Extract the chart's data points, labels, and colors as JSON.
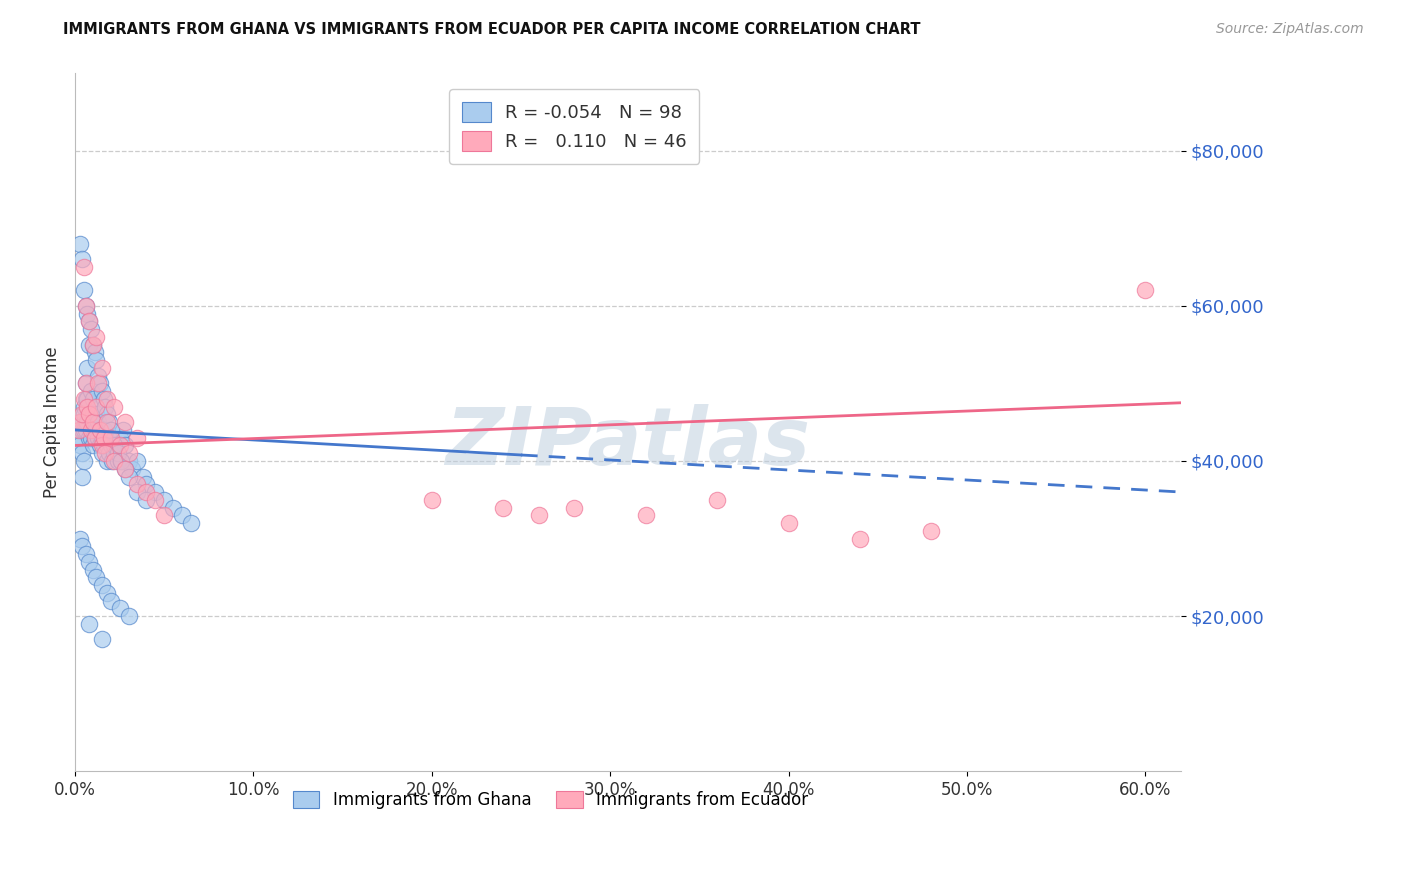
{
  "title": "IMMIGRANTS FROM GHANA VS IMMIGRANTS FROM ECUADOR PER CAPITA INCOME CORRELATION CHART",
  "source": "Source: ZipAtlas.com",
  "ylabel": "Per Capita Income",
  "xlim": [
    0.0,
    0.62
  ],
  "ylim": [
    0,
    90000
  ],
  "yticks": [
    20000,
    40000,
    60000,
    80000
  ],
  "ytick_labels": [
    "$20,000",
    "$40,000",
    "$60,000",
    "$80,000"
  ],
  "xticks": [
    0.0,
    0.1,
    0.2,
    0.3,
    0.4,
    0.5,
    0.6
  ],
  "xtick_labels": [
    "0.0%",
    "10.0%",
    "20.0%",
    "30.0%",
    "40.0%",
    "50.0%",
    "60.0%"
  ],
  "legend_R_ghana": "-0.054",
  "legend_N_ghana": "98",
  "legend_R_ecuador": "0.110",
  "legend_N_ecuador": "46",
  "ghana_face_color": "#AACCEE",
  "ghana_edge_color": "#5588CC",
  "ecuador_face_color": "#FFAABB",
  "ecuador_edge_color": "#EE7799",
  "trend_ghana_color": "#4477CC",
  "trend_ecuador_color": "#EE6688",
  "watermark": "ZIPatlas",
  "watermark_color": "#BBCCDD",
  "ghana_x": [
    0.002,
    0.003,
    0.003,
    0.004,
    0.004,
    0.004,
    0.005,
    0.005,
    0.005,
    0.005,
    0.006,
    0.006,
    0.006,
    0.007,
    0.007,
    0.007,
    0.008,
    0.008,
    0.009,
    0.009,
    0.009,
    0.01,
    0.01,
    0.01,
    0.01,
    0.011,
    0.011,
    0.012,
    0.012,
    0.013,
    0.013,
    0.014,
    0.014,
    0.015,
    0.015,
    0.016,
    0.016,
    0.017,
    0.018,
    0.018,
    0.019,
    0.02,
    0.021,
    0.022,
    0.023,
    0.024,
    0.025,
    0.026,
    0.027,
    0.028,
    0.03,
    0.032,
    0.035,
    0.038,
    0.04,
    0.045,
    0.05,
    0.055,
    0.06,
    0.065,
    0.003,
    0.004,
    0.005,
    0.006,
    0.007,
    0.008,
    0.009,
    0.01,
    0.011,
    0.012,
    0.013,
    0.014,
    0.015,
    0.016,
    0.017,
    0.018,
    0.019,
    0.02,
    0.022,
    0.024,
    0.026,
    0.028,
    0.03,
    0.035,
    0.04,
    0.003,
    0.004,
    0.006,
    0.008,
    0.01,
    0.012,
    0.015,
    0.018,
    0.02,
    0.025,
    0.03,
    0.008,
    0.015
  ],
  "ghana_y": [
    43000,
    45000,
    42000,
    44000,
    41000,
    38000,
    47000,
    46000,
    44000,
    40000,
    50000,
    48000,
    44000,
    52000,
    48000,
    45000,
    55000,
    43000,
    49000,
    46000,
    43000,
    48000,
    46000,
    44000,
    42000,
    45000,
    43000,
    46000,
    44000,
    45000,
    43000,
    44000,
    42000,
    43000,
    41000,
    44000,
    42000,
    43000,
    42000,
    40000,
    41000,
    42000,
    40000,
    41000,
    42000,
    40000,
    43000,
    40000,
    44000,
    42000,
    40000,
    39000,
    40000,
    38000,
    37000,
    36000,
    35000,
    34000,
    33000,
    32000,
    68000,
    66000,
    62000,
    60000,
    59000,
    58000,
    57000,
    55000,
    54000,
    53000,
    51000,
    50000,
    49000,
    48000,
    47000,
    46000,
    45000,
    44000,
    42000,
    41000,
    40000,
    39000,
    38000,
    36000,
    35000,
    30000,
    29000,
    28000,
    27000,
    26000,
    25000,
    24000,
    23000,
    22000,
    21000,
    20000,
    19000,
    17000
  ],
  "ecuador_x": [
    0.002,
    0.003,
    0.004,
    0.005,
    0.006,
    0.007,
    0.008,
    0.009,
    0.01,
    0.011,
    0.012,
    0.013,
    0.014,
    0.015,
    0.016,
    0.017,
    0.018,
    0.02,
    0.022,
    0.025,
    0.028,
    0.03,
    0.035,
    0.04,
    0.045,
    0.05,
    0.005,
    0.006,
    0.008,
    0.01,
    0.012,
    0.015,
    0.018,
    0.022,
    0.028,
    0.035,
    0.2,
    0.24,
    0.26,
    0.28,
    0.32,
    0.36,
    0.4,
    0.6,
    0.44,
    0.48
  ],
  "ecuador_y": [
    44000,
    45000,
    46000,
    48000,
    50000,
    47000,
    46000,
    44000,
    45000,
    43000,
    47000,
    50000,
    44000,
    42000,
    43000,
    41000,
    45000,
    43000,
    40000,
    42000,
    39000,
    41000,
    37000,
    36000,
    35000,
    33000,
    65000,
    60000,
    58000,
    55000,
    56000,
    52000,
    48000,
    47000,
    45000,
    43000,
    35000,
    34000,
    33000,
    34000,
    33000,
    35000,
    32000,
    62000,
    30000,
    31000
  ],
  "ghana_trend_x0": 0.0,
  "ghana_trend_x_solid_end": 0.25,
  "ghana_trend_x1": 0.62,
  "ghana_trend_y0": 44000,
  "ghana_trend_y1": 36000,
  "ecuador_trend_x0": 0.0,
  "ecuador_trend_x1": 0.62,
  "ecuador_trend_y0": 42000,
  "ecuador_trend_y1": 47500
}
